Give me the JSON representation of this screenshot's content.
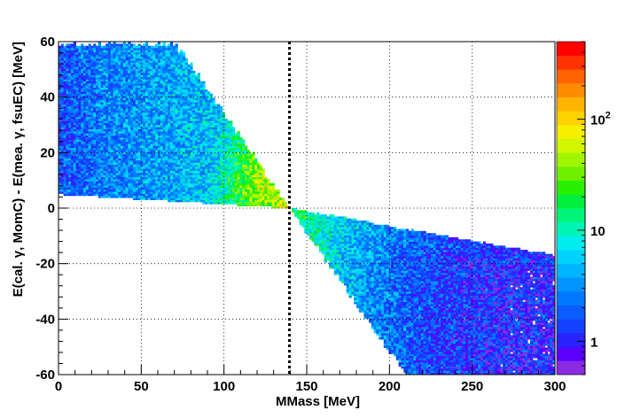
{
  "chart_data": {
    "type": "heatmap",
    "xlabel": "MMass [MeV]",
    "ylabel": "E(cal. γ, MomC) - E(mea.  γ, fsuEC) [MeV]",
    "xlim": [
      0,
      300
    ],
    "ylim": [
      -60,
      60
    ],
    "x_ticks": [
      "0",
      "50",
      "100",
      "150",
      "200",
      "250",
      "300"
    ],
    "x_tick_values": [
      0,
      50,
      100,
      150,
      200,
      250,
      300
    ],
    "y_ticks": [
      "-60",
      "-40",
      "-20",
      "0",
      "20",
      "40",
      "60"
    ],
    "y_tick_values": [
      -60,
      -40,
      -20,
      0,
      20,
      40,
      60
    ],
    "grid": true,
    "reference_line": {
      "x": 139.57,
      "style": "dotted"
    },
    "colorbar": {
      "scale": "log",
      "range": [
        0.5,
        500
      ],
      "labels": [
        {
          "text": "1",
          "value": 1
        },
        {
          "text": "10",
          "value": 10
        },
        {
          "text": "10",
          "sup": "2",
          "value": 100
        }
      ],
      "colors": [
        "#8a2be2",
        "#5a00ff",
        "#2a22ff",
        "#1441ff",
        "#0a5cff",
        "#0077ff",
        "#0094ff",
        "#00b4ff",
        "#00d2ff",
        "#00ecf0",
        "#00f5b4",
        "#00f578",
        "#00ee3c",
        "#28f000",
        "#6ef000",
        "#a0f500",
        "#d2f500",
        "#f5f000",
        "#ffd200",
        "#ffb400",
        "#ff8c00",
        "#ff6400",
        "#ff3200",
        "#ff0000"
      ]
    },
    "regions": [
      {
        "name": "upper-left band",
        "x_range": [
          0,
          139.57
        ],
        "y_at_x0": [
          5,
          60
        ],
        "y_at_edge": [
          0,
          0
        ],
        "typical_counts": [
          1,
          30
        ],
        "peak_counts": 120,
        "peak_near": [
          125,
          8
        ]
      },
      {
        "name": "lower-right band",
        "x_range": [
          139.57,
          300
        ],
        "y_at_x300": [
          -60,
          -17
        ],
        "typical_counts": [
          1,
          20
        ],
        "peak_near": [
          145,
          -3
        ]
      }
    ]
  }
}
